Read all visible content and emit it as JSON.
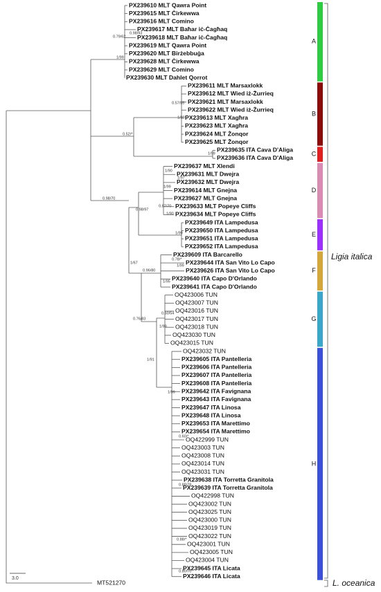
{
  "leaves": [
    "PX239610 MLT Qawra Point",
    "PX239615 MLT Ċirkewwa",
    "PX239616 MLT Comino",
    "PX239617 MLT Baħar iċ-Ċagħaq",
    "PX239618 MLT Baħar iċ-Ċagħaq",
    "PX239619 MLT Qawra Point",
    "PX239620 MLT Birżebbuġa",
    "PX239628 MLT Ċirkewwa",
    "PX239629 MLT Comino",
    "PX239630 MLT Dahlet Qorrot",
    "PX239611 MLT Marsaxlokk",
    "PX239612 MLT Wied iż-Żurrieq",
    "PX239621 MLT Marsaxlokk",
    "PX239622 MLT Wied iż-Żurrieq",
    "PX239613 MLT Xagħra",
    "PX239623 MLT Xagħra",
    "PX239624 MLT Żonqor",
    "PX239625 MLT Żonqor",
    "PX239635 ITA Cava D'Aliga",
    "PX239636 ITA Cava D'Aliga",
    "PX239637 MLT Xlendi",
    "PX239631 MLT Dwejra",
    "PX239632 MLT Dwejra",
    "PX239614 MLT Gnejna",
    "PX239627 MLT Gnejna",
    "PX239633 MLT Popeye Cliffs",
    "PX239634 MLT Popeye Cliffs",
    "PX239649 ITA Lampedusa",
    "PX239650 ITA Lampedusa",
    "PX239651 ITA Lampedusa",
    "PX239652 ITA Lampedusa",
    "PX239609 ITA Barcarello",
    "PX239644 ITA San Vito Lo Capo",
    "PX239626 ITA San Vito Lo Capo",
    "PX239640 ITA Capo D'Orlando",
    "PX239641 ITA Capo D'Orlando",
    "OQ423006 TUN",
    "OQ423007 TUN",
    "OQ423016 TUN",
    "OQ423017 TUN",
    "OQ423018 TUN",
    "OQ423030 TUN",
    "OQ423015 TUN",
    "OQ423032 TUN",
    "PX239605 ITA Pantelleria",
    "PX239606 ITA Pantelleria",
    "PX239607 ITA Pantelleria",
    "PX239608 ITA Pantelleria",
    "PX239642 ITA Favignana",
    "PX239643 ITA Favignana",
    "PX239647 ITA Linosa",
    "PX239648 ITA Linosa",
    "PX239653 ITA Marettimo",
    "PX239654 ITA Marettimo",
    "OQ422999 TUN",
    "OQ423003 TUN",
    "OQ423008 TUN",
    "OQ423014 TUN",
    "OQ423031 TUN",
    "PX239638 ITA Torretta Granitola",
    "PX239639 ITA Torretta Granitola",
    "OQ422998 TUN",
    "OQ423002 TUN",
    "OQ423025 TUN",
    "OQ423000 TUN",
    "OQ423019 TUN",
    "OQ423022 TUN",
    "OQ423001 TUN",
    "OQ423005 TUN",
    "OQ423004 TUN",
    "PX239645 ITA Licata",
    "PX239646 ITA Licata"
  ],
  "outgroup": "MT521270",
  "supports": [
    "0.79/62",
    "0.98/93",
    "1/99",
    "0.57/55",
    "1/99",
    "0.52/*",
    "1/99",
    "1/90",
    "1/97",
    "1/99",
    "0.98/97",
    "0.87/70",
    "1/90",
    "1/99",
    "0.98/70",
    "1/67",
    "0.78/*",
    "1/99",
    "0.96/80",
    "1/95",
    "0.60/54",
    "0.76/83",
    "1/99",
    "1/91",
    "1/99",
    "0.60/*",
    "0.88/78",
    "0.88/*",
    "0.80/70"
  ],
  "clades": [
    {
      "label": "A",
      "color": "#2ecc40"
    },
    {
      "label": "B",
      "color": "#8b0a0a"
    },
    {
      "label": "C",
      "color": "#e02020"
    },
    {
      "label": "D",
      "color": "#d98cb3"
    },
    {
      "label": "E",
      "color": "#9b30ff"
    },
    {
      "label": "F",
      "color": "#d4a73a"
    },
    {
      "label": "G",
      "color": "#3aa6c8"
    },
    {
      "label": "H",
      "color": "#3b4fd8"
    }
  ],
  "species": [
    "Ligia italica",
    "L. oceanica"
  ],
  "scale": "3.0"
}
